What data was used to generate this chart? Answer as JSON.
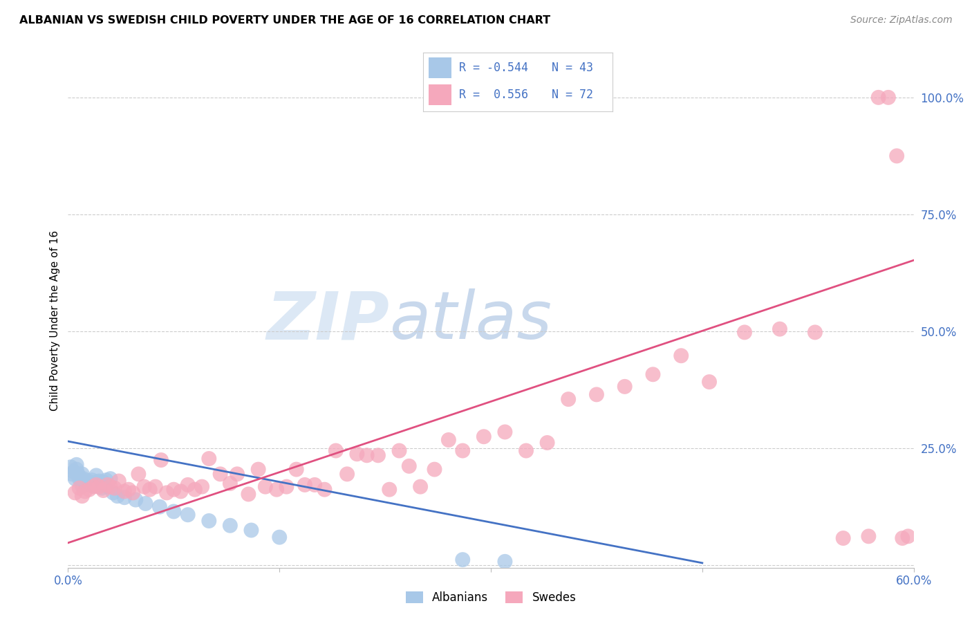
{
  "title": "ALBANIAN VS SWEDISH CHILD POVERTY UNDER THE AGE OF 16 CORRELATION CHART",
  "source": "Source: ZipAtlas.com",
  "ylabel": "Child Poverty Under the Age of 16",
  "xlim": [
    0.0,
    0.6
  ],
  "ylim": [
    -0.005,
    1.05
  ],
  "xticks": [
    0.0,
    0.15,
    0.3,
    0.45,
    0.6
  ],
  "xtick_labels": [
    "0.0%",
    "",
    "",
    "",
    "60.0%"
  ],
  "ytick_positions": [
    0.0,
    0.25,
    0.5,
    0.75,
    1.0
  ],
  "ytick_labels": [
    "",
    "25.0%",
    "50.0%",
    "75.0%",
    "100.0%"
  ],
  "albanian_color": "#a8c8e8",
  "swedish_color": "#f5a8bc",
  "albanian_line_color": "#4472c4",
  "swedish_line_color": "#e05080",
  "watermark_color": "#dce8f5",
  "albanian_x": [
    0.002,
    0.003,
    0.004,
    0.005,
    0.006,
    0.006,
    0.007,
    0.008,
    0.009,
    0.01,
    0.01,
    0.011,
    0.012,
    0.013,
    0.014,
    0.015,
    0.016,
    0.017,
    0.018,
    0.019,
    0.02,
    0.021,
    0.022,
    0.023,
    0.024,
    0.025,
    0.027,
    0.028,
    0.03,
    0.032,
    0.035,
    0.04,
    0.048,
    0.055,
    0.065,
    0.075,
    0.085,
    0.1,
    0.115,
    0.13,
    0.15,
    0.28,
    0.31
  ],
  "albanian_y": [
    0.21,
    0.195,
    0.2,
    0.185,
    0.215,
    0.205,
    0.195,
    0.185,
    0.185,
    0.195,
    0.17,
    0.185,
    0.175,
    0.178,
    0.18,
    0.172,
    0.175,
    0.182,
    0.17,
    0.175,
    0.192,
    0.178,
    0.18,
    0.172,
    0.165,
    0.178,
    0.182,
    0.168,
    0.185,
    0.155,
    0.148,
    0.145,
    0.14,
    0.132,
    0.125,
    0.115,
    0.108,
    0.095,
    0.085,
    0.075,
    0.06,
    0.012,
    0.008
  ],
  "swedish_x": [
    0.005,
    0.008,
    0.01,
    0.012,
    0.015,
    0.018,
    0.02,
    0.022,
    0.025,
    0.028,
    0.03,
    0.033,
    0.036,
    0.04,
    0.043,
    0.046,
    0.05,
    0.054,
    0.058,
    0.062,
    0.066,
    0.07,
    0.075,
    0.08,
    0.085,
    0.09,
    0.095,
    0.1,
    0.108,
    0.115,
    0.12,
    0.128,
    0.135,
    0.14,
    0.148,
    0.155,
    0.162,
    0.168,
    0.175,
    0.182,
    0.19,
    0.198,
    0.205,
    0.212,
    0.22,
    0.228,
    0.235,
    0.242,
    0.25,
    0.26,
    0.27,
    0.28,
    0.295,
    0.31,
    0.325,
    0.34,
    0.355,
    0.375,
    0.395,
    0.415,
    0.435,
    0.455,
    0.48,
    0.505,
    0.53,
    0.55,
    0.568,
    0.575,
    0.582,
    0.588,
    0.592,
    0.596
  ],
  "swedish_y": [
    0.155,
    0.165,
    0.148,
    0.158,
    0.162,
    0.168,
    0.172,
    0.168,
    0.16,
    0.172,
    0.168,
    0.165,
    0.18,
    0.158,
    0.162,
    0.155,
    0.195,
    0.168,
    0.162,
    0.168,
    0.225,
    0.155,
    0.162,
    0.158,
    0.172,
    0.162,
    0.168,
    0.228,
    0.195,
    0.175,
    0.195,
    0.152,
    0.205,
    0.168,
    0.162,
    0.168,
    0.205,
    0.172,
    0.172,
    0.162,
    0.245,
    0.195,
    0.238,
    0.235,
    0.235,
    0.162,
    0.245,
    0.212,
    0.168,
    0.205,
    0.268,
    0.245,
    0.275,
    0.285,
    0.245,
    0.262,
    0.355,
    0.365,
    0.382,
    0.408,
    0.448,
    0.392,
    0.498,
    0.505,
    0.498,
    0.058,
    0.062,
    1.0,
    1.0,
    0.875,
    0.058,
    0.062
  ],
  "alb_line_x0": 0.0,
  "alb_line_y0": 0.265,
  "alb_line_x1": 0.45,
  "alb_line_y1": 0.005,
  "swe_line_x0": 0.0,
  "swe_line_y0": 0.048,
  "swe_line_x1": 0.6,
  "swe_line_y1": 0.652
}
